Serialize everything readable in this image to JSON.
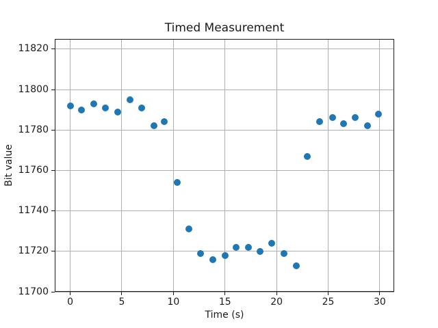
{
  "chart_data": {
    "type": "scatter",
    "title": "Timed Measurement",
    "xlabel": "Time (s)",
    "ylabel": "Bit value",
    "x": [
      0.0,
      1.1,
      2.3,
      3.4,
      4.6,
      5.8,
      6.9,
      8.1,
      9.1,
      10.4,
      11.5,
      12.6,
      13.8,
      15.0,
      16.1,
      17.3,
      18.4,
      19.5,
      20.7,
      21.9,
      23.0,
      24.2,
      25.4,
      26.5,
      27.6,
      28.8,
      29.9
    ],
    "y": [
      11792,
      11790,
      11793,
      11791,
      11789,
      11795,
      11791,
      11782,
      11784,
      11754,
      11731,
      11719,
      11716,
      11718,
      11722,
      11722,
      11720,
      11724,
      11719,
      11713,
      11767,
      11784,
      11786,
      11783,
      11786,
      11782,
      11788
    ],
    "xlim": [
      -1.5,
      31.4
    ],
    "ylim": [
      11700,
      11825
    ],
    "xticks": [
      0,
      5,
      10,
      15,
      20,
      25,
      30
    ],
    "yticks": [
      11700,
      11720,
      11740,
      11760,
      11780,
      11800,
      11820
    ],
    "grid": true,
    "legend_position": "none",
    "marker_color": "#1f77b4",
    "grid_color": "#b0b0b0",
    "spine_color": "#1a1a1a"
  }
}
